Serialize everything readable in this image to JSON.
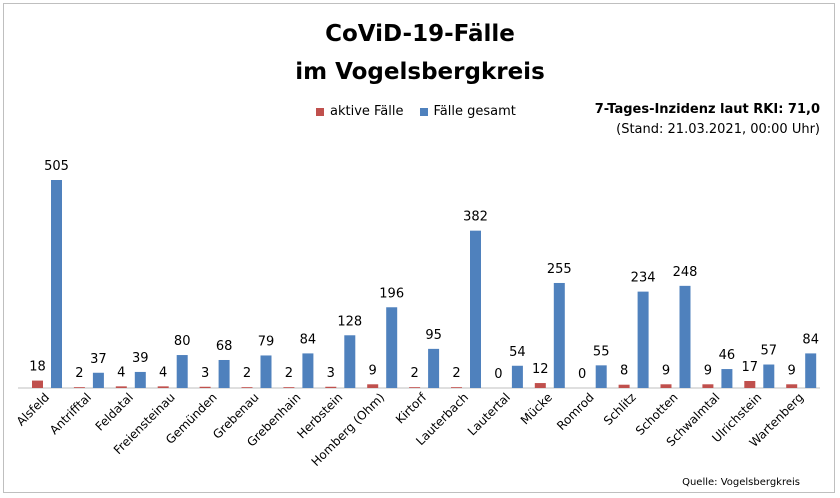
{
  "chart_data": {
    "type": "bar",
    "title": [
      "CoViD-19-Fälle",
      "im Vogelsbergkreis"
    ],
    "categories": [
      "Alsfeld",
      "Antrifftal",
      "Feldatal",
      "Freiensteinau",
      "Gemünden",
      "Grebenau",
      "Grebenhain",
      "Herbstein",
      "Homberg (Ohm)",
      "Kirtorf",
      "Lauterbach",
      "Lautertal",
      "Mücke",
      "Romrod",
      "Schlitz",
      "Schotten",
      "Schwalmtal",
      "Ulrichstein",
      "Wartenberg"
    ],
    "series": [
      {
        "name": "aktive Fälle",
        "color": "#c0504d",
        "values": [
          18,
          2,
          4,
          4,
          3,
          2,
          2,
          3,
          9,
          2,
          2,
          0,
          12,
          0,
          8,
          9,
          9,
          17,
          9
        ]
      },
      {
        "name": "Fälle gesamt",
        "color": "#4f81bd",
        "values": [
          505,
          37,
          39,
          80,
          68,
          79,
          84,
          128,
          196,
          95,
          382,
          54,
          255,
          55,
          234,
          248,
          46,
          57,
          84
        ]
      }
    ],
    "ylim": [
      0,
      505
    ],
    "grid": false,
    "legend": "top-center",
    "annotation": {
      "inzidenz": "7-Tages-Inzidenz laut RKI: 71,0",
      "stand": "(Stand: 21.03.2021, 00:00 Uhr)"
    },
    "source": "Quelle: Vogelsbergkreis"
  }
}
